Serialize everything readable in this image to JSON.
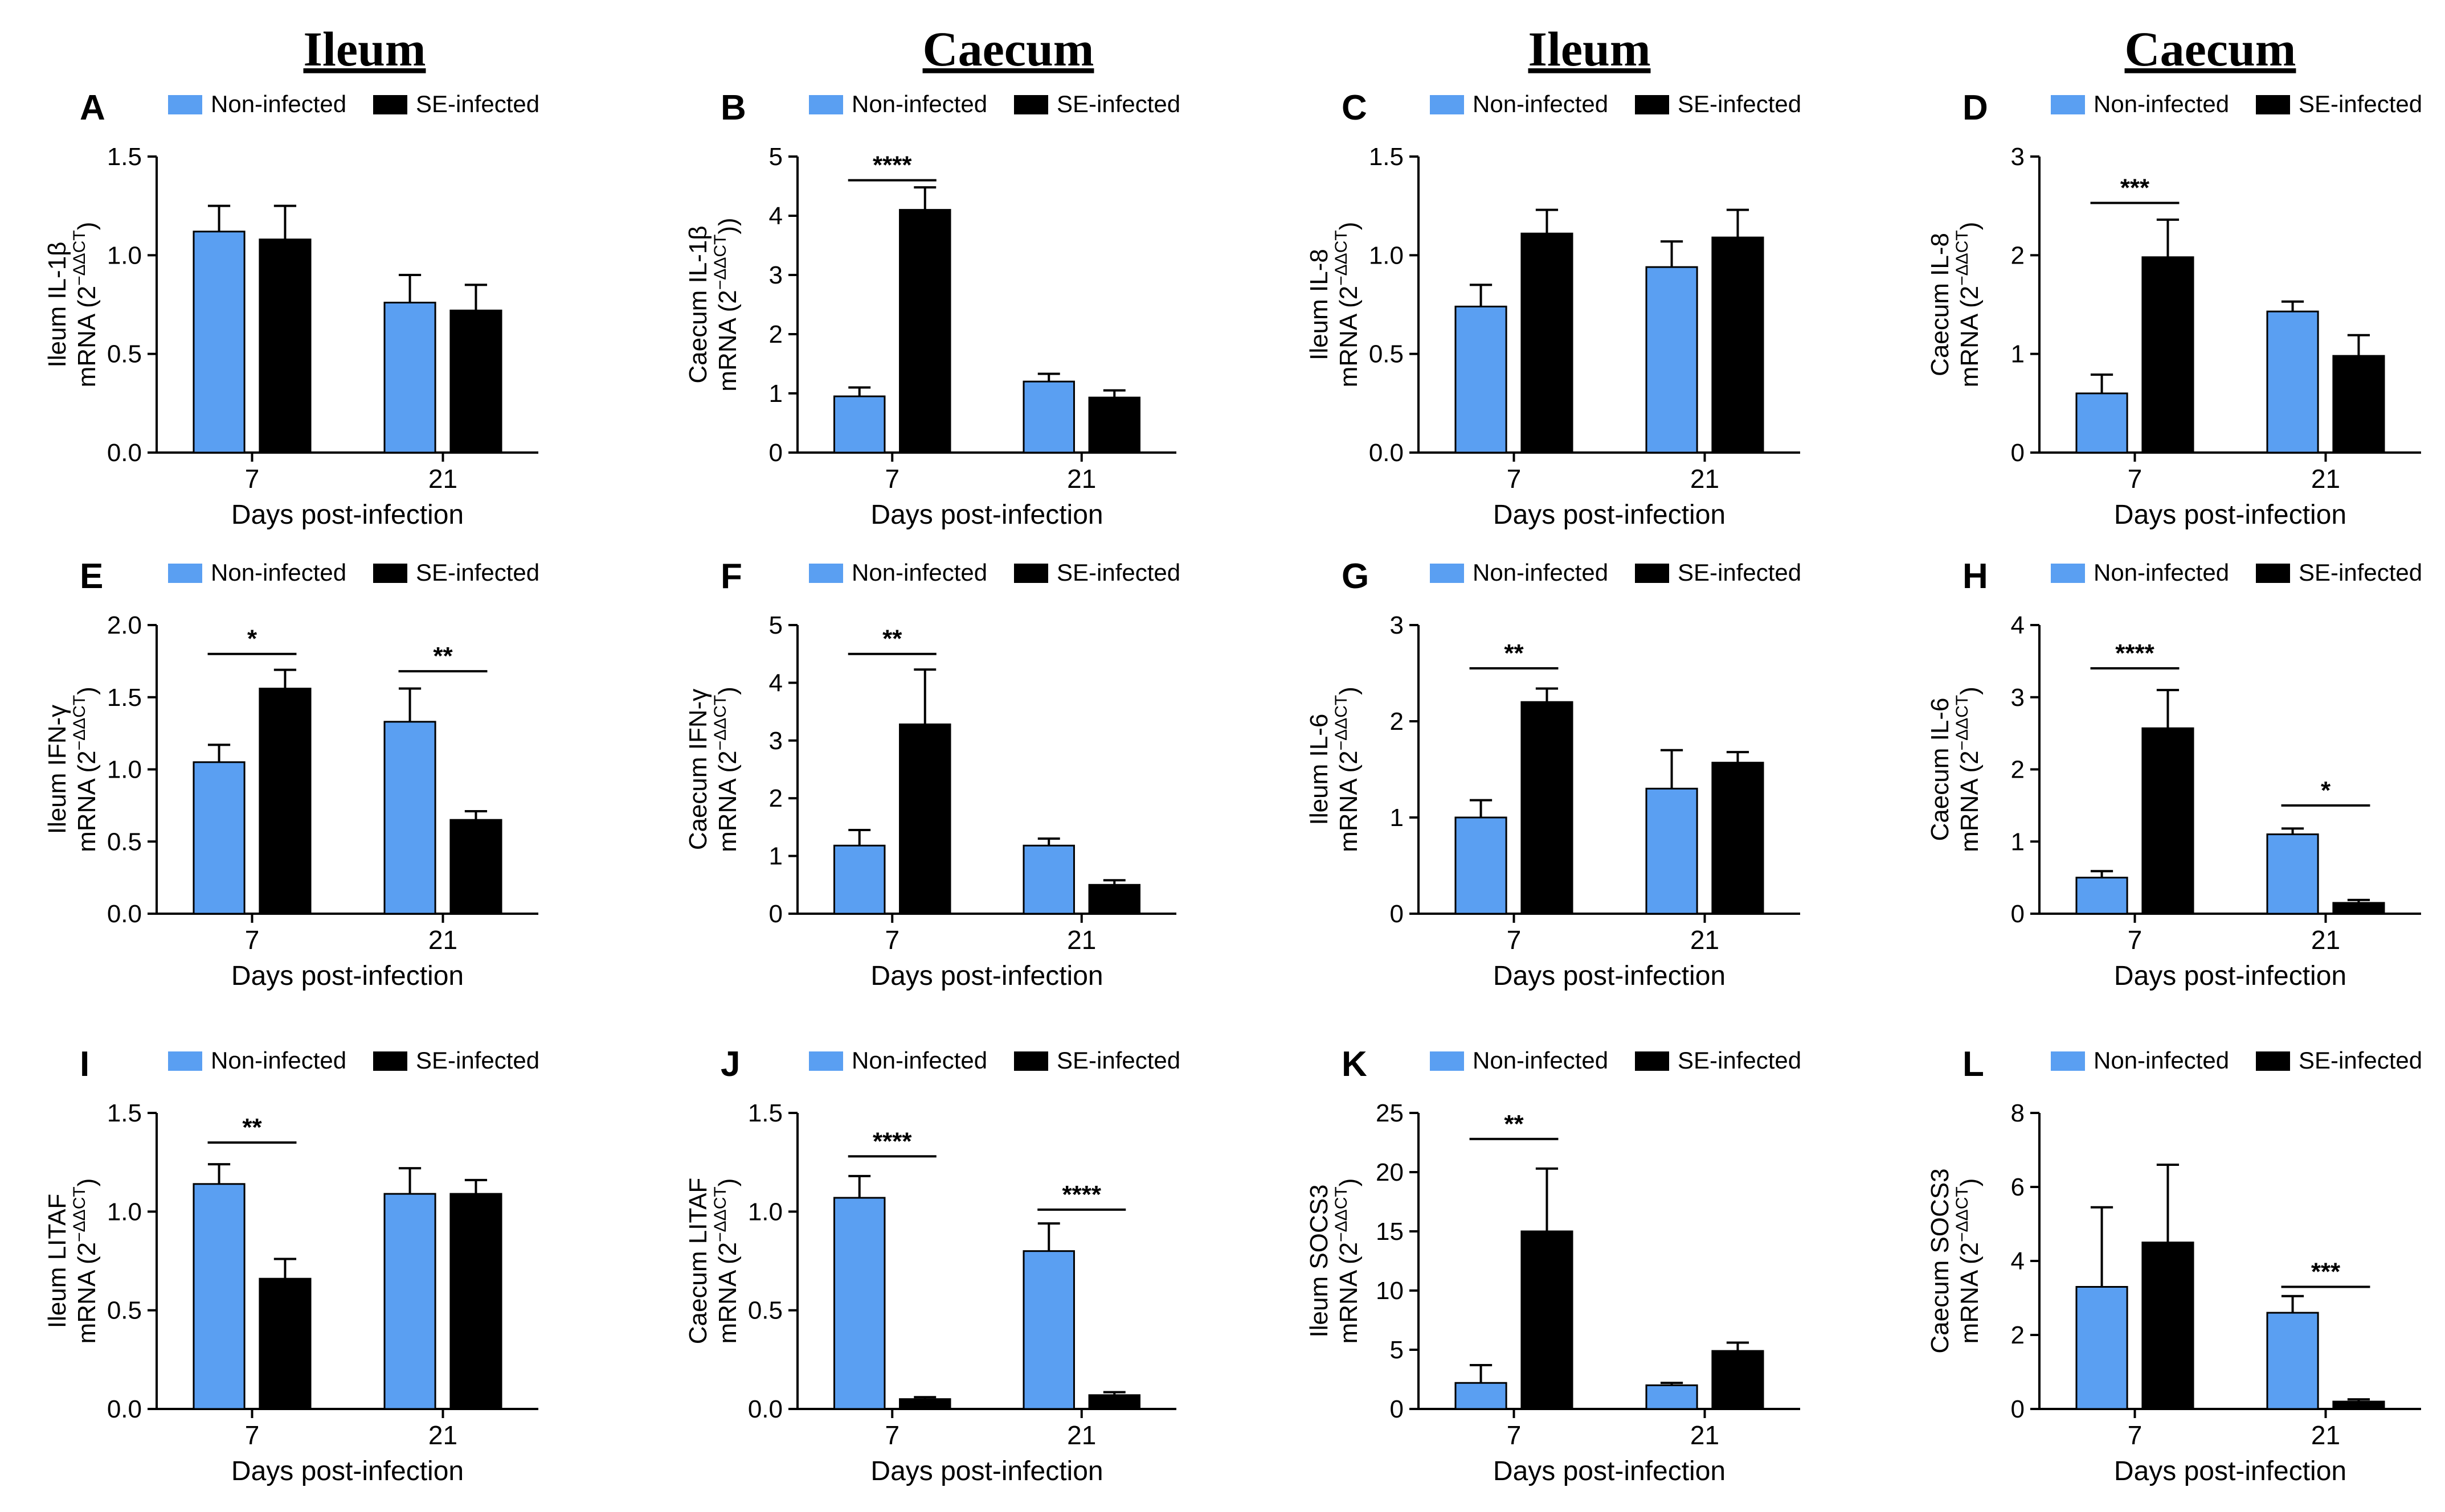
{
  "headers": [
    "Ileum",
    "Caecum",
    "Ileum",
    "Caecum"
  ],
  "colors": {
    "non_infected": "#5a9ff2",
    "se_infected": "#000000",
    "axis": "#000000"
  },
  "chart_data": [
    {
      "panel": "A",
      "type": "bar",
      "categories": [
        "7",
        "21"
      ],
      "series": [
        {
          "name": "Non-infected",
          "values": [
            1.12,
            0.76
          ],
          "errors": [
            0.13,
            0.14
          ]
        },
        {
          "name": "SE-infected",
          "values": [
            1.08,
            0.72
          ],
          "errors": [
            0.17,
            0.13
          ]
        }
      ],
      "xlabel": "Days post-infection",
      "ylabel_line1": "Ileum IL-1β",
      "ylabel_line2": "mRNA (2",
      "ylabel_sup": "−ΔΔCT",
      "ylabel_end": ")",
      "ylim": [
        0,
        1.5
      ],
      "yticks": [
        "0.0",
        "0.5",
        "1.0",
        "1.5"
      ],
      "significance": []
    },
    {
      "panel": "B",
      "type": "bar",
      "categories": [
        "7",
        "21"
      ],
      "series": [
        {
          "name": "Non-infected",
          "values": [
            0.95,
            1.2
          ],
          "errors": [
            0.15,
            0.13
          ]
        },
        {
          "name": "SE-infected",
          "values": [
            4.1,
            0.93
          ],
          "errors": [
            0.38,
            0.12
          ]
        }
      ],
      "xlabel": "Days post-infection",
      "ylabel_line1": "Caecum IL-1β",
      "ylabel_line2": "mRNA (2",
      "ylabel_sup": "−ΔΔCT",
      "ylabel_end": "))",
      "ylim": [
        0,
        5
      ],
      "yticks": [
        "0",
        "1",
        "2",
        "3",
        "4",
        "5"
      ],
      "significance": [
        {
          "group": 0,
          "label": "****",
          "y": 4.6
        }
      ]
    },
    {
      "panel": "C",
      "type": "bar",
      "categories": [
        "7",
        "21"
      ],
      "series": [
        {
          "name": "Non-infected",
          "values": [
            0.74,
            0.94
          ],
          "errors": [
            0.11,
            0.13
          ]
        },
        {
          "name": "SE-infected",
          "values": [
            1.11,
            1.09
          ],
          "errors": [
            0.12,
            0.14
          ]
        }
      ],
      "xlabel": "Days post-infection",
      "ylabel_line1": "Ileum IL-8",
      "ylabel_line2": "mRNA (2",
      "ylabel_sup": "−ΔΔCT",
      "ylabel_end": ")",
      "ylim": [
        0,
        1.5
      ],
      "yticks": [
        "0.0",
        "0.5",
        "1.0",
        "1.5"
      ],
      "significance": []
    },
    {
      "panel": "D",
      "type": "bar",
      "categories": [
        "7",
        "21"
      ],
      "series": [
        {
          "name": "Non-infected",
          "values": [
            0.6,
            1.43
          ],
          "errors": [
            0.19,
            0.1
          ]
        },
        {
          "name": "SE-infected",
          "values": [
            1.98,
            0.98
          ],
          "errors": [
            0.38,
            0.21
          ]
        }
      ],
      "xlabel": "Days post-infection",
      "ylabel_line1": "Caecum IL-8",
      "ylabel_line2": "mRNA (2",
      "ylabel_sup": "−ΔΔCT",
      "ylabel_end": ")",
      "ylim": [
        0,
        3
      ],
      "yticks": [
        "0",
        "1",
        "2",
        "3"
      ],
      "significance": [
        {
          "group": 0,
          "label": "***",
          "y": 2.53
        }
      ]
    },
    {
      "panel": "E",
      "type": "bar",
      "categories": [
        "7",
        "21"
      ],
      "series": [
        {
          "name": "Non-infected",
          "values": [
            1.05,
            1.33
          ],
          "errors": [
            0.12,
            0.23
          ]
        },
        {
          "name": "SE-infected",
          "values": [
            1.56,
            0.65
          ],
          "errors": [
            0.13,
            0.06
          ]
        }
      ],
      "xlabel": "Days post-infection",
      "ylabel_line1": "Ileum IFN-γ",
      "ylabel_line2": "mRNA (2",
      "ylabel_sup": "−ΔΔCT",
      "ylabel_end": ")",
      "ylim": [
        0,
        2.0
      ],
      "yticks": [
        "0.0",
        "0.5",
        "1.0",
        "1.5",
        "2.0"
      ],
      "significance": [
        {
          "group": 0,
          "label": "*",
          "y": 1.8
        },
        {
          "group": 1,
          "label": "**",
          "y": 1.68
        }
      ]
    },
    {
      "panel": "F",
      "type": "bar",
      "categories": [
        "7",
        "21"
      ],
      "series": [
        {
          "name": "Non-infected",
          "values": [
            1.18,
            1.18
          ],
          "errors": [
            0.27,
            0.12
          ]
        },
        {
          "name": "SE-infected",
          "values": [
            3.28,
            0.5
          ],
          "errors": [
            0.95,
            0.08
          ]
        }
      ],
      "xlabel": "Days post-infection",
      "ylabel_line1": "Caecum IFN-γ",
      "ylabel_line2": "mRNA (2",
      "ylabel_sup": "−ΔΔCT",
      "ylabel_end": ")",
      "ylim": [
        0,
        5
      ],
      "yticks": [
        "0",
        "1",
        "2",
        "3",
        "4",
        "5"
      ],
      "significance": [
        {
          "group": 0,
          "label": "**",
          "y": 4.5
        }
      ]
    },
    {
      "panel": "G",
      "type": "bar",
      "categories": [
        "7",
        "21"
      ],
      "series": [
        {
          "name": "Non-infected",
          "values": [
            1.0,
            1.3
          ],
          "errors": [
            0.18,
            0.4
          ]
        },
        {
          "name": "SE-infected",
          "values": [
            2.2,
            1.57
          ],
          "errors": [
            0.14,
            0.11
          ]
        }
      ],
      "xlabel": "Days post-infection",
      "ylabel_line1": "Ileum IL-6",
      "ylabel_line2": "mRNA (2",
      "ylabel_sup": "−ΔΔCT",
      "ylabel_end": ")",
      "ylim": [
        0,
        3
      ],
      "yticks": [
        "0",
        "1",
        "2",
        "3"
      ],
      "significance": [
        {
          "group": 0,
          "label": "**",
          "y": 2.55
        }
      ]
    },
    {
      "panel": "H",
      "type": "bar",
      "categories": [
        "7",
        "21"
      ],
      "series": [
        {
          "name": "Non-infected",
          "values": [
            0.5,
            1.1
          ],
          "errors": [
            0.09,
            0.08
          ]
        },
        {
          "name": "SE-infected",
          "values": [
            2.57,
            0.15
          ],
          "errors": [
            0.53,
            0.04
          ]
        }
      ],
      "xlabel": "Days post-infection",
      "ylabel_line1": "Caecum IL-6",
      "ylabel_line2": "mRNA (2",
      "ylabel_sup": "−ΔΔCT",
      "ylabel_end": ")",
      "ylim": [
        0,
        4
      ],
      "yticks": [
        "0",
        "1",
        "2",
        "3",
        "4"
      ],
      "significance": [
        {
          "group": 0,
          "label": "****",
          "y": 3.4
        },
        {
          "group": 1,
          "label": "*",
          "y": 1.5
        }
      ]
    },
    {
      "panel": "I",
      "type": "bar",
      "categories": [
        "7",
        "21"
      ],
      "series": [
        {
          "name": "Non-infected",
          "values": [
            1.14,
            1.09
          ],
          "errors": [
            0.1,
            0.13
          ]
        },
        {
          "name": "SE-infected",
          "values": [
            0.66,
            1.09
          ],
          "errors": [
            0.1,
            0.07
          ]
        }
      ],
      "xlabel": "Days post-infection",
      "ylabel_line1": "Ileum LITAF",
      "ylabel_line2": "mRNA (2",
      "ylabel_sup": "−ΔΔCT",
      "ylabel_end": ")",
      "ylim": [
        0,
        1.5
      ],
      "yticks": [
        "0.0",
        "0.5",
        "1.0",
        "1.5"
      ],
      "significance": [
        {
          "group": 0,
          "label": "**",
          "y": 1.35
        }
      ]
    },
    {
      "panel": "J",
      "type": "bar",
      "categories": [
        "7",
        "21"
      ],
      "series": [
        {
          "name": "Non-infected",
          "values": [
            1.07,
            0.8
          ],
          "errors": [
            0.11,
            0.14
          ]
        },
        {
          "name": "SE-infected",
          "values": [
            0.05,
            0.07
          ],
          "errors": [
            0.01,
            0.015
          ]
        }
      ],
      "xlabel": "Days post-infection",
      "ylabel_line1": "Caecum LITAF",
      "ylabel_line2": "mRNA (2",
      "ylabel_sup": "−ΔΔCT",
      "ylabel_end": ")",
      "ylim": [
        0,
        1.5
      ],
      "yticks": [
        "0.0",
        "0.5",
        "1.0",
        "1.5"
      ],
      "significance": [
        {
          "group": 0,
          "label": "****",
          "y": 1.28
        },
        {
          "group": 1,
          "label": "****",
          "y": 1.01
        }
      ]
    },
    {
      "panel": "K",
      "type": "bar",
      "categories": [
        "7",
        "21"
      ],
      "series": [
        {
          "name": "Non-infected",
          "values": [
            2.2,
            2.0
          ],
          "errors": [
            1.5,
            0.2
          ]
        },
        {
          "name": "SE-infected",
          "values": [
            15.0,
            4.9
          ],
          "errors": [
            5.3,
            0.7
          ]
        }
      ],
      "xlabel": "Days post-infection",
      "ylabel_line1": "Ileum SOCS3",
      "ylabel_line2": "mRNA (2",
      "ylabel_sup": "−ΔΔCT",
      "ylabel_end": ")",
      "ylim": [
        0,
        25
      ],
      "yticks": [
        "0",
        "5",
        "10",
        "15",
        "20",
        "25"
      ],
      "significance": [
        {
          "group": 0,
          "label": "**",
          "y": 22.8
        }
      ]
    },
    {
      "panel": "L",
      "type": "bar",
      "categories": [
        "7",
        "21"
      ],
      "series": [
        {
          "name": "Non-infected",
          "values": [
            3.3,
            2.6
          ],
          "errors": [
            2.15,
            0.45
          ]
        },
        {
          "name": "SE-infected",
          "values": [
            4.5,
            0.2
          ],
          "errors": [
            2.1,
            0.06
          ]
        }
      ],
      "xlabel": "Days post-infection",
      "ylabel_line1": "Caecum SOCS3",
      "ylabel_line2": "mRNA (2",
      "ylabel_sup": "−ΔΔCT",
      "ylabel_end": ")",
      "ylim": [
        0,
        8
      ],
      "yticks": [
        "0",
        "2",
        "4",
        "6",
        "8"
      ],
      "significance": [
        {
          "group": 1,
          "label": "***",
          "y": 3.3
        }
      ]
    }
  ]
}
